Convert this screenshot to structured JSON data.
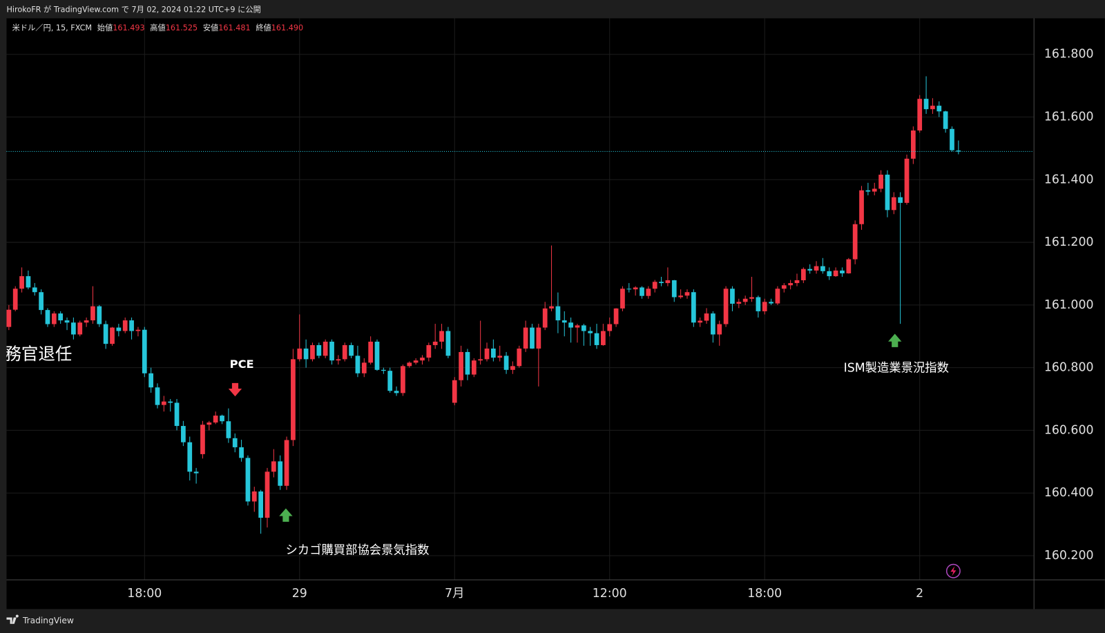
{
  "header": {
    "published": "HirokoFR が TradingView.com で 7月 02, 2024 01:22 UTC+9 に公開"
  },
  "legend": {
    "symbol": "米ドル／円, 15, FXCM",
    "fields": [
      {
        "name": "始値",
        "value": "161.493"
      },
      {
        "name": "高値",
        "value": "161.525"
      },
      {
        "name": "安値",
        "value": "161.481"
      },
      {
        "name": "終値",
        "value": "161.490"
      }
    ]
  },
  "annotations": {
    "left_text": "務官退任",
    "pce": "PCE",
    "chicago": "シカゴ購買部協会景気指数",
    "ism": "ISM製造業景況指数"
  },
  "footer": {
    "brand": "TradingView"
  },
  "chart_data": {
    "type": "candlestick",
    "up_color": "#f23645",
    "down_color": "#26c6da",
    "grid": true,
    "ylim": [
      160.124,
      161.915
    ],
    "yticks": [
      {
        "value": 160.2,
        "label": "160.200"
      },
      {
        "value": 160.4,
        "label": "160.400"
      },
      {
        "value": 160.6,
        "label": "160.600"
      },
      {
        "value": 160.8,
        "label": "160.800"
      },
      {
        "value": 161.0,
        "label": "161.000"
      },
      {
        "value": 161.2,
        "label": "161.200"
      },
      {
        "value": 161.4,
        "label": "161.400"
      },
      {
        "value": 161.6,
        "label": "161.600"
      },
      {
        "value": 161.8,
        "label": "161.800"
      }
    ],
    "last_price": 161.49,
    "categories": [
      null,
      null,
      null,
      null,
      null,
      null,
      null,
      null,
      null,
      null,
      null,
      null,
      null,
      null,
      null,
      null,
      null,
      null,
      null,
      null,
      null,
      "18:00",
      null,
      null,
      null,
      null,
      null,
      null,
      null,
      null,
      null,
      null,
      null,
      null,
      null,
      null,
      null,
      null,
      null,
      null,
      null,
      null,
      null,
      null,
      null,
      "29",
      null,
      null,
      null,
      null,
      null,
      null,
      null,
      null,
      null,
      null,
      null,
      null,
      null,
      null,
      null,
      null,
      null,
      null,
      null,
      null,
      null,
      null,
      null,
      "7月",
      null,
      null,
      null,
      null,
      null,
      null,
      null,
      null,
      null,
      null,
      null,
      null,
      null,
      null,
      null,
      null,
      null,
      null,
      null,
      null,
      null,
      null,
      null,
      "12:00",
      null,
      null,
      null,
      null,
      null,
      null,
      null,
      null,
      null,
      null,
      null,
      null,
      null,
      null,
      null,
      null,
      null,
      null,
      null,
      null,
      null,
      null,
      null,
      "18:00",
      null,
      null,
      null,
      null,
      null,
      null,
      null,
      null,
      null,
      null,
      null,
      null,
      null,
      null,
      null,
      null,
      null,
      null,
      null,
      null,
      null,
      null,
      null,
      "2",
      null,
      null,
      null,
      null,
      null,
      null
    ],
    "candles": [
      [
        160.93,
        161.0,
        160.92,
        160.985
      ],
      [
        160.985,
        161.06,
        160.98,
        161.052
      ],
      [
        161.052,
        161.12,
        161.04,
        161.092
      ],
      [
        161.092,
        161.11,
        161.05,
        161.056
      ],
      [
        161.056,
        161.07,
        161.03,
        161.041
      ],
      [
        161.041,
        161.05,
        160.97,
        160.984
      ],
      [
        160.984,
        160.99,
        160.93,
        160.939
      ],
      [
        160.939,
        160.98,
        160.93,
        160.973
      ],
      [
        160.973,
        160.98,
        160.94,
        160.951
      ],
      [
        160.951,
        160.96,
        160.92,
        160.944
      ],
      [
        160.944,
        160.96,
        160.89,
        160.906
      ],
      [
        160.906,
        160.95,
        160.9,
        160.944
      ],
      [
        160.944,
        160.96,
        160.93,
        160.951
      ],
      [
        160.951,
        161.06,
        160.94,
        160.996
      ],
      [
        160.996,
        161.0,
        160.93,
        160.939
      ],
      [
        160.939,
        160.95,
        160.86,
        160.876
      ],
      [
        160.876,
        160.93,
        160.87,
        160.928
      ],
      [
        160.928,
        160.94,
        160.9,
        160.917
      ],
      [
        160.917,
        160.96,
        160.91,
        160.951
      ],
      [
        160.951,
        160.96,
        160.89,
        160.917
      ],
      [
        160.917,
        160.93,
        160.9,
        160.921
      ],
      [
        160.921,
        160.93,
        160.77,
        160.782
      ],
      [
        160.782,
        160.8,
        160.72,
        160.737
      ],
      [
        160.737,
        160.75,
        160.67,
        160.681
      ],
      [
        160.681,
        160.71,
        160.66,
        160.692
      ],
      [
        160.692,
        160.7,
        160.66,
        160.688
      ],
      [
        160.688,
        160.7,
        160.6,
        160.614
      ],
      [
        160.614,
        160.63,
        160.55,
        160.562
      ],
      [
        160.562,
        160.58,
        160.44,
        160.468
      ],
      [
        160.468,
        160.48,
        160.43,
        160.463
      ],
      [
        160.524,
        160.63,
        160.51,
        160.618
      ],
      [
        160.618,
        160.63,
        160.6,
        160.625
      ],
      [
        160.625,
        160.66,
        160.62,
        160.647
      ],
      [
        160.647,
        160.65,
        160.62,
        160.629
      ],
      [
        160.629,
        160.67,
        160.56,
        160.575
      ],
      [
        160.575,
        160.59,
        160.53,
        160.546
      ],
      [
        160.546,
        160.57,
        160.5,
        160.512
      ],
      [
        160.512,
        160.52,
        160.36,
        160.373
      ],
      [
        160.373,
        160.42,
        160.34,
        160.405
      ],
      [
        160.405,
        160.41,
        160.27,
        160.321
      ],
      [
        160.321,
        160.48,
        160.29,
        160.468
      ],
      [
        160.468,
        160.54,
        160.45,
        160.501
      ],
      [
        160.501,
        160.52,
        160.41,
        160.423
      ],
      [
        160.423,
        160.58,
        160.41,
        160.569
      ],
      [
        160.569,
        160.86,
        160.55,
        160.827
      ],
      [
        160.827,
        160.97,
        160.82,
        160.861
      ],
      [
        160.861,
        160.89,
        160.8,
        160.827
      ],
      [
        160.827,
        160.88,
        160.82,
        160.872
      ],
      [
        160.872,
        160.88,
        160.83,
        160.838
      ],
      [
        160.838,
        160.89,
        160.83,
        160.883
      ],
      [
        160.883,
        160.89,
        160.81,
        160.823
      ],
      [
        160.823,
        160.84,
        160.81,
        160.827
      ],
      [
        160.827,
        160.88,
        160.82,
        160.872
      ],
      [
        160.872,
        160.88,
        160.83,
        160.838
      ],
      [
        160.838,
        160.87,
        160.77,
        160.782
      ],
      [
        160.782,
        160.83,
        160.77,
        160.816
      ],
      [
        160.816,
        160.9,
        160.81,
        160.883
      ],
      [
        160.883,
        160.89,
        160.79,
        160.793
      ],
      [
        160.793,
        160.8,
        160.78,
        160.79
      ],
      [
        160.79,
        160.8,
        160.72,
        160.726
      ],
      [
        160.726,
        160.74,
        160.71,
        160.719
      ],
      [
        160.719,
        160.81,
        160.71,
        160.805
      ],
      [
        160.805,
        160.82,
        160.8,
        160.816
      ],
      [
        160.816,
        160.83,
        160.81,
        160.823
      ],
      [
        160.823,
        160.84,
        160.81,
        160.832
      ],
      [
        160.832,
        160.88,
        160.82,
        160.872
      ],
      [
        160.872,
        160.94,
        160.86,
        160.883
      ],
      [
        160.883,
        160.94,
        160.86,
        160.917
      ],
      [
        160.917,
        160.93,
        160.83,
        160.838
      ],
      [
        160.688,
        160.77,
        160.68,
        160.76
      ],
      [
        160.76,
        160.87,
        160.74,
        160.85
      ],
      [
        160.85,
        160.86,
        160.76,
        160.778
      ],
      [
        160.778,
        160.83,
        160.77,
        160.823
      ],
      [
        160.823,
        160.95,
        160.81,
        160.827
      ],
      [
        160.827,
        160.88,
        160.82,
        160.861
      ],
      [
        160.861,
        160.89,
        160.82,
        160.832
      ],
      [
        160.832,
        160.87,
        160.82,
        160.838
      ],
      [
        160.838,
        160.85,
        160.78,
        160.793
      ],
      [
        160.793,
        160.82,
        160.78,
        160.805
      ],
      [
        160.805,
        160.87,
        160.8,
        160.861
      ],
      [
        160.861,
        160.95,
        160.85,
        160.928
      ],
      [
        160.928,
        160.94,
        160.86,
        160.861
      ],
      [
        160.861,
        160.94,
        160.74,
        160.928
      ],
      [
        160.928,
        161.01,
        160.92,
        160.989
      ],
      [
        160.989,
        161.19,
        160.98,
        160.996
      ],
      [
        160.996,
        161.04,
        160.91,
        160.951
      ],
      [
        160.951,
        160.98,
        160.9,
        160.944
      ],
      [
        160.944,
        160.96,
        160.88,
        160.928
      ],
      [
        160.928,
        160.94,
        160.88,
        160.935
      ],
      [
        160.935,
        160.94,
        160.87,
        160.917
      ],
      [
        160.917,
        160.93,
        160.87,
        160.91
      ],
      [
        160.91,
        160.94,
        160.86,
        160.872
      ],
      [
        160.872,
        160.94,
        160.87,
        160.917
      ],
      [
        160.917,
        160.96,
        160.9,
        160.939
      ],
      [
        160.939,
        160.99,
        160.93,
        160.989
      ],
      [
        160.989,
        161.06,
        160.98,
        161.052
      ],
      [
        161.052,
        161.07,
        161.04,
        161.05
      ],
      [
        161.05,
        161.06,
        161.03,
        161.056
      ],
      [
        161.056,
        161.06,
        161.02,
        161.029
      ],
      [
        161.029,
        161.06,
        161.02,
        161.052
      ],
      [
        161.052,
        161.08,
        161.04,
        161.074
      ],
      [
        161.074,
        161.09,
        161.06,
        161.07
      ],
      [
        161.07,
        161.12,
        161.06,
        161.079
      ],
      [
        161.079,
        161.08,
        161.01,
        161.025
      ],
      [
        161.025,
        161.05,
        161.02,
        161.03
      ],
      [
        161.03,
        161.05,
        161.02,
        161.041
      ],
      [
        161.041,
        161.05,
        160.93,
        160.944
      ],
      [
        160.944,
        160.96,
        160.93,
        160.95
      ],
      [
        160.95,
        160.99,
        160.94,
        160.973
      ],
      [
        160.973,
        160.98,
        160.88,
        160.906
      ],
      [
        160.906,
        160.95,
        160.87,
        160.939
      ],
      [
        160.939,
        161.06,
        160.93,
        161.052
      ],
      [
        161.052,
        161.06,
        160.98,
        161.004
      ],
      [
        161.004,
        161.02,
        160.99,
        161.01
      ],
      [
        161.01,
        161.03,
        161.0,
        161.02
      ],
      [
        161.02,
        161.09,
        161.01,
        161.025
      ],
      [
        161.025,
        161.03,
        160.96,
        160.98
      ],
      [
        160.98,
        161.02,
        160.97,
        161.01
      ],
      [
        161.01,
        161.02,
        161.0,
        161.005
      ],
      [
        161.005,
        161.06,
        161.0,
        161.052
      ],
      [
        161.052,
        161.07,
        161.04,
        161.063
      ],
      [
        161.063,
        161.08,
        161.05,
        161.07
      ],
      [
        161.07,
        161.1,
        161.06,
        161.079
      ],
      [
        161.079,
        161.12,
        161.07,
        161.115
      ],
      [
        161.115,
        161.13,
        161.1,
        161.11
      ],
      [
        161.11,
        161.14,
        161.1,
        161.124
      ],
      [
        161.124,
        161.15,
        161.1,
        161.108
      ],
      [
        161.108,
        161.12,
        161.08,
        161.092
      ],
      [
        161.092,
        161.12,
        161.09,
        161.11
      ],
      [
        161.11,
        161.12,
        161.09,
        161.101
      ],
      [
        161.101,
        161.15,
        161.1,
        161.146
      ],
      [
        161.146,
        161.27,
        161.13,
        161.258
      ],
      [
        161.258,
        161.38,
        161.24,
        161.366
      ],
      [
        161.366,
        161.39,
        161.35,
        161.362
      ],
      [
        161.362,
        161.39,
        161.35,
        161.371
      ],
      [
        161.371,
        161.43,
        161.36,
        161.416
      ],
      [
        161.416,
        161.43,
        161.28,
        161.303
      ],
      [
        161.303,
        161.36,
        161.29,
        161.344
      ],
      [
        161.344,
        161.36,
        160.94,
        161.326
      ],
      [
        161.326,
        161.48,
        161.32,
        161.467
      ],
      [
        161.467,
        161.57,
        161.45,
        161.557
      ],
      [
        161.557,
        161.67,
        161.55,
        161.658
      ],
      [
        161.658,
        161.73,
        161.61,
        161.625
      ],
      [
        161.625,
        161.66,
        161.61,
        161.636
      ],
      [
        161.636,
        161.65,
        161.6,
        161.618
      ],
      [
        161.618,
        161.62,
        161.55,
        161.562
      ],
      [
        161.562,
        161.57,
        161.49,
        161.494
      ],
      [
        161.493,
        161.525,
        161.481,
        161.49
      ]
    ]
  }
}
